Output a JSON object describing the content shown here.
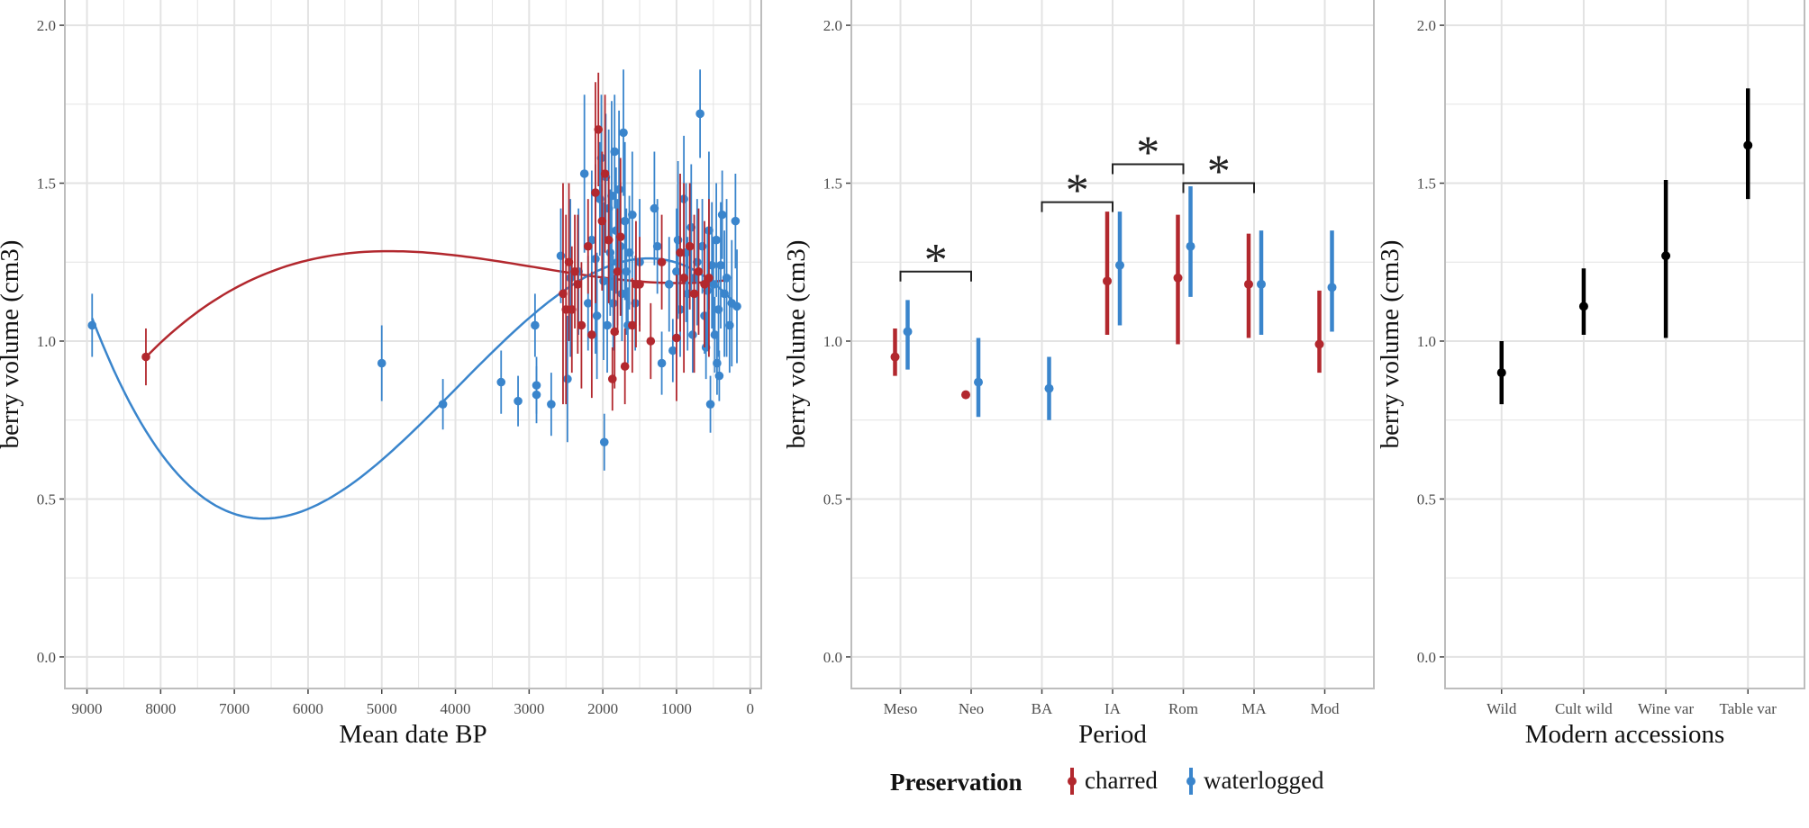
{
  "colors": {
    "charred": "#b2282e",
    "waterlogged": "#3a85cc",
    "modern": "#000000",
    "grid": "#e3e3e3",
    "frame": "#bdbdbd"
  },
  "legend": {
    "title": "Preservation",
    "items": [
      {
        "label": "charred",
        "key": "charred"
      },
      {
        "label": "waterlogged",
        "key": "waterlogged"
      }
    ]
  },
  "chart_data": [
    {
      "type": "scatter",
      "xlabel": "Mean date BP",
      "ylabel": "berry volume (cm3)",
      "xlim": [
        9300,
        -150
      ],
      "ylim": [
        -0.1,
        2.08
      ],
      "x_reversed": true,
      "xticks": [
        9000,
        8000,
        7000,
        6000,
        5000,
        4000,
        3000,
        2000,
        1000,
        0
      ],
      "yticks": [
        "0.0",
        "0.5",
        "1.0",
        "1.5",
        "2.0"
      ],
      "grid": true,
      "series": [
        {
          "name": "charred",
          "color_key": "charred",
          "points": [
            [
              8200,
              0.95,
              0.09
            ],
            [
              2540,
              1.15,
              0.35
            ],
            [
              2500,
              1.1,
              0.3
            ],
            [
              2460,
              1.25,
              0.25
            ],
            [
              2420,
              1.1,
              0.2
            ],
            [
              2380,
              1.22,
              0.18
            ],
            [
              2340,
              1.18,
              0.22
            ],
            [
              2290,
              1.05,
              0.2
            ],
            [
              2200,
              1.3,
              0.15
            ],
            [
              2150,
              1.02,
              0.2
            ],
            [
              2100,
              1.47,
              0.35
            ],
            [
              2060,
              1.67,
              0.18
            ],
            [
              2010,
              1.38,
              0.22
            ],
            [
              1970,
              1.53,
              0.25
            ],
            [
              1920,
              1.32,
              0.2
            ],
            [
              1870,
              0.88,
              0.1
            ],
            [
              1840,
              1.03,
              0.18
            ],
            [
              1800,
              1.22,
              0.2
            ],
            [
              1760,
              1.33,
              0.25
            ],
            [
              1700,
              0.92,
              0.12
            ],
            [
              1600,
              1.05,
              0.15
            ],
            [
              1550,
              1.18,
              0.2
            ],
            [
              1500,
              1.18,
              0.15
            ],
            [
              1350,
              1.0,
              0.12
            ],
            [
              1200,
              1.25,
              0.15
            ],
            [
              1000,
              1.01,
              0.2
            ],
            [
              950,
              1.28,
              0.25
            ],
            [
              900,
              1.2,
              0.3
            ],
            [
              820,
              1.3,
              0.2
            ],
            [
              760,
              1.15,
              0.25
            ],
            [
              700,
              1.22,
              0.2
            ],
            [
              620,
              1.18,
              0.2
            ],
            [
              560,
              1.2,
              0.25
            ]
          ]
        },
        {
          "name": "waterlogged",
          "color_key": "waterlogged",
          "points": [
            [
              8930,
              1.05,
              0.1
            ],
            [
              5000,
              0.93,
              0.12
            ],
            [
              4170,
              0.8,
              0.08
            ],
            [
              3380,
              0.87,
              0.1
            ],
            [
              3150,
              0.81,
              0.08
            ],
            [
              2920,
              1.05,
              0.1
            ],
            [
              2900,
              0.86,
              0.09
            ],
            [
              2900,
              0.83,
              0.09
            ],
            [
              2700,
              0.8,
              0.1
            ],
            [
              2570,
              1.27,
              0.15
            ],
            [
              2480,
              0.88,
              0.2
            ],
            [
              2440,
              1.2,
              0.25
            ],
            [
              2330,
              1.22,
              0.2
            ],
            [
              2250,
              1.53,
              0.25
            ],
            [
              2200,
              1.12,
              0.15
            ],
            [
              2150,
              1.32,
              0.22
            ],
            [
              2100,
              1.26,
              0.3
            ],
            [
              2080,
              1.08,
              0.2
            ],
            [
              2040,
              1.45,
              0.18
            ],
            [
              2020,
              1.58,
              0.2
            ],
            [
              1990,
              1.19,
              0.25
            ],
            [
              1980,
              0.68,
              0.09
            ],
            [
              1960,
              1.52,
              0.2
            ],
            [
              1940,
              1.05,
              0.15
            ],
            [
              1920,
              1.42,
              0.25
            ],
            [
              1900,
              1.28,
              0.2
            ],
            [
              1880,
              1.46,
              0.3
            ],
            [
              1860,
              1.12,
              0.15
            ],
            [
              1840,
              1.6,
              0.18
            ],
            [
              1820,
              1.35,
              0.2
            ],
            [
              1800,
              1.25,
              0.2
            ],
            [
              1780,
              1.48,
              0.25
            ],
            [
              1760,
              1.3,
              0.2
            ],
            [
              1740,
              1.15,
              0.15
            ],
            [
              1720,
              1.66,
              0.2
            ],
            [
              1700,
              1.38,
              0.25
            ],
            [
              1680,
              1.22,
              0.2
            ],
            [
              1660,
              1.05,
              0.12
            ],
            [
              1640,
              1.28,
              0.18
            ],
            [
              1600,
              1.4,
              0.2
            ],
            [
              1560,
              1.12,
              0.15
            ],
            [
              1500,
              1.25,
              0.2
            ],
            [
              1300,
              1.42,
              0.18
            ],
            [
              1260,
              1.3,
              0.15
            ],
            [
              1200,
              0.93,
              0.1
            ],
            [
              1100,
              1.18,
              0.15
            ],
            [
              1050,
              0.97,
              0.1
            ],
            [
              1000,
              1.22,
              0.2
            ],
            [
              980,
              1.32,
              0.25
            ],
            [
              950,
              1.1,
              0.15
            ],
            [
              900,
              1.45,
              0.2
            ],
            [
              870,
              1.28,
              0.22
            ],
            [
              850,
              1.15,
              0.18
            ],
            [
              800,
              1.36,
              0.2
            ],
            [
              780,
              1.02,
              0.12
            ],
            [
              760,
              1.2,
              0.15
            ],
            [
              720,
              1.25,
              0.2
            ],
            [
              680,
              1.72,
              0.14
            ],
            [
              650,
              1.3,
              0.15
            ],
            [
              620,
              1.08,
              0.12
            ],
            [
              600,
              0.98,
              0.1
            ],
            [
              580,
              1.16,
              0.18
            ],
            [
              560,
              1.35,
              0.25
            ],
            [
              540,
              0.8,
              0.09
            ],
            [
              520,
              1.24,
              0.2
            ],
            [
              500,
              1.18,
              0.15
            ],
            [
              480,
              1.02,
              0.12
            ],
            [
              460,
              1.32,
              0.18
            ],
            [
              450,
              0.93,
              0.1
            ],
            [
              430,
              1.1,
              0.15
            ],
            [
              420,
              0.89,
              0.08
            ],
            [
              400,
              1.24,
              0.2
            ],
            [
              380,
              1.4,
              0.14
            ],
            [
              350,
              1.15,
              0.2
            ],
            [
              320,
              1.2,
              0.25
            ],
            [
              280,
              1.05,
              0.15
            ],
            [
              250,
              1.12,
              0.2
            ],
            [
              200,
              1.38,
              0.15
            ],
            [
              180,
              1.11,
              0.18
            ]
          ]
        }
      ],
      "fits": [
        {
          "name": "charred",
          "color_key": "charred",
          "x_range": [
            8200,
            300
          ],
          "model": "cubic"
        },
        {
          "name": "waterlogged",
          "color_key": "waterlogged",
          "x_range": [
            8930,
            180
          ],
          "model": "cubic"
        }
      ]
    },
    {
      "type": "pointrange",
      "xlabel": "Period",
      "ylabel": "berry volume (cm3)",
      "ylim": [
        -0.1,
        2.08
      ],
      "yticks": [
        "0.0",
        "0.5",
        "1.0",
        "1.5",
        "2.0"
      ],
      "grid": true,
      "categories": [
        "Meso",
        "Neo",
        "BA",
        "IA",
        "Rom",
        "MA",
        "Mod"
      ],
      "series": [
        {
          "name": "charred",
          "color_key": "charred",
          "values": [
            {
              "mean": 0.95,
              "low": 0.89,
              "high": 1.04
            },
            {
              "mean": 0.83,
              "low": 0.82,
              "high": 0.84
            },
            null,
            {
              "mean": 1.19,
              "low": 1.02,
              "high": 1.41
            },
            {
              "mean": 1.2,
              "low": 0.99,
              "high": 1.4
            },
            {
              "mean": 1.18,
              "low": 1.01,
              "high": 1.34
            },
            {
              "mean": 0.99,
              "low": 0.9,
              "high": 1.16
            }
          ]
        },
        {
          "name": "waterlogged",
          "color_key": "waterlogged",
          "values": [
            {
              "mean": 1.03,
              "low": 0.91,
              "high": 1.13
            },
            {
              "mean": 0.87,
              "low": 0.76,
              "high": 1.01
            },
            {
              "mean": 0.85,
              "low": 0.75,
              "high": 0.95
            },
            {
              "mean": 1.24,
              "low": 1.05,
              "high": 1.41
            },
            {
              "mean": 1.3,
              "low": 1.14,
              "high": 1.49
            },
            {
              "mean": 1.18,
              "low": 1.02,
              "high": 1.35
            },
            {
              "mean": 1.17,
              "low": 1.03,
              "high": 1.35
            }
          ]
        }
      ],
      "annotations": [
        {
          "label": "*",
          "from": 0,
          "to": 1,
          "y": 1.22
        },
        {
          "label": "*",
          "from": 2,
          "to": 3,
          "y": 1.44
        },
        {
          "label": "*",
          "from": 3,
          "to": 4,
          "y": 1.56
        },
        {
          "label": "*",
          "from": 4,
          "to": 5,
          "y": 1.5
        }
      ]
    },
    {
      "type": "pointrange",
      "xlabel": "Modern accessions",
      "ylabel": "berry volume (cm3)",
      "ylim": [
        -0.1,
        2.08
      ],
      "yticks": [
        "0.0",
        "0.5",
        "1.0",
        "1.5",
        "2.0"
      ],
      "grid": true,
      "categories": [
        "Wild",
        "Cult wild",
        "Wine var",
        "Table var"
      ],
      "series": [
        {
          "name": "",
          "color_key": "modern",
          "values": [
            {
              "mean": 0.9,
              "low": 0.8,
              "high": 1.0
            },
            {
              "mean": 1.11,
              "low": 1.02,
              "high": 1.23
            },
            {
              "mean": 1.27,
              "low": 1.01,
              "high": 1.51
            },
            {
              "mean": 1.62,
              "low": 1.45,
              "high": 1.8
            }
          ]
        }
      ]
    }
  ]
}
